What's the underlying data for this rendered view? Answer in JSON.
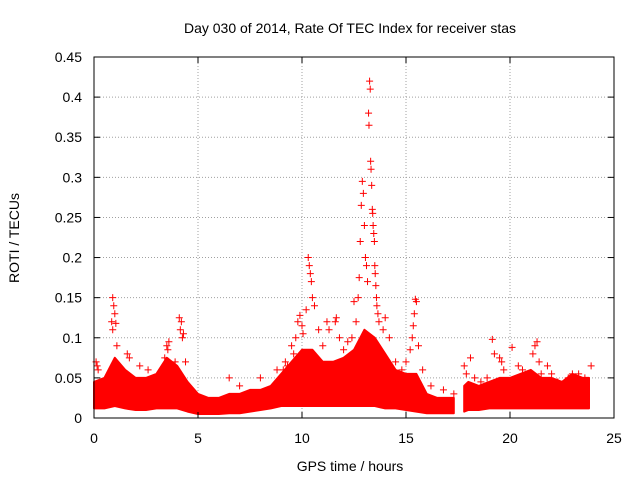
{
  "chart_data": {
    "type": "scatter",
    "title": "Day 030 of 2014, Rate Of TEC Index for receiver stas",
    "xlabel": "GPS time / hours",
    "ylabel": "ROTI / TECUs",
    "xlim": [
      0,
      25
    ],
    "ylim": [
      0,
      0.45
    ],
    "xticks": [
      0,
      5,
      10,
      15,
      20,
      25
    ],
    "xtick_labels": [
      "0",
      "5",
      "10",
      "15",
      "20",
      "25"
    ],
    "yticks": [
      0,
      0.05,
      0.1,
      0.15,
      0.2,
      0.25,
      0.3,
      0.35,
      0.4,
      0.45
    ],
    "ytick_labels": [
      "0",
      "0.05",
      "0.1",
      "0.15",
      "0.2",
      "0.25",
      "0.3",
      "0.35",
      "0.4",
      "0.45"
    ],
    "grid": true,
    "marker": "+",
    "series": [
      {
        "name": "ROTI",
        "color": "#ff0000",
        "points": [
          [
            0.1,
            0.07
          ],
          [
            0.15,
            0.065
          ],
          [
            0.2,
            0.06
          ],
          [
            0.9,
            0.15
          ],
          [
            0.95,
            0.14
          ],
          [
            1.0,
            0.13
          ],
          [
            0.85,
            0.12
          ],
          [
            1.05,
            0.118
          ],
          [
            0.9,
            0.11
          ],
          [
            1.1,
            0.09
          ],
          [
            1.6,
            0.08
          ],
          [
            1.7,
            0.075
          ],
          [
            2.2,
            0.065
          ],
          [
            2.6,
            0.06
          ],
          [
            3.4,
            0.075
          ],
          [
            3.5,
            0.09
          ],
          [
            3.6,
            0.095
          ],
          [
            3.55,
            0.085
          ],
          [
            4.1,
            0.125
          ],
          [
            4.2,
            0.12
          ],
          [
            4.15,
            0.11
          ],
          [
            4.3,
            0.105
          ],
          [
            4.25,
            0.1
          ],
          [
            3.9,
            0.07
          ],
          [
            4.4,
            0.07
          ],
          [
            6.5,
            0.05
          ],
          [
            7.0,
            0.04
          ],
          [
            8.0,
            0.05
          ],
          [
            9.0,
            0.04
          ],
          [
            8.8,
            0.06
          ],
          [
            9.1,
            0.06
          ],
          [
            9.2,
            0.07
          ],
          [
            9.3,
            0.065
          ],
          [
            9.5,
            0.09
          ],
          [
            9.6,
            0.08
          ],
          [
            9.7,
            0.1
          ],
          [
            9.8,
            0.12
          ],
          [
            9.9,
            0.128
          ],
          [
            10.0,
            0.115
          ],
          [
            10.05,
            0.105
          ],
          [
            10.2,
            0.135
          ],
          [
            10.3,
            0.2
          ],
          [
            10.35,
            0.19
          ],
          [
            10.4,
            0.18
          ],
          [
            10.45,
            0.17
          ],
          [
            10.5,
            0.15
          ],
          [
            10.6,
            0.14
          ],
          [
            10.8,
            0.11
          ],
          [
            11.0,
            0.09
          ],
          [
            11.2,
            0.12
          ],
          [
            11.3,
            0.11
          ],
          [
            11.6,
            0.12
          ],
          [
            11.65,
            0.125
          ],
          [
            11.8,
            0.1
          ],
          [
            12.0,
            0.085
          ],
          [
            12.2,
            0.095
          ],
          [
            12.4,
            0.1
          ],
          [
            12.5,
            0.145
          ],
          [
            12.6,
            0.12
          ],
          [
            12.7,
            0.15
          ],
          [
            12.75,
            0.175
          ],
          [
            12.8,
            0.22
          ],
          [
            12.85,
            0.265
          ],
          [
            12.9,
            0.295
          ],
          [
            12.95,
            0.28
          ],
          [
            13.0,
            0.24
          ],
          [
            13.05,
            0.2
          ],
          [
            13.1,
            0.19
          ],
          [
            13.15,
            0.17
          ],
          [
            13.2,
            0.38
          ],
          [
            13.22,
            0.365
          ],
          [
            13.25,
            0.42
          ],
          [
            13.28,
            0.41
          ],
          [
            13.3,
            0.32
          ],
          [
            13.32,
            0.31
          ],
          [
            13.35,
            0.29
          ],
          [
            13.38,
            0.26
          ],
          [
            13.4,
            0.255
          ],
          [
            13.42,
            0.24
          ],
          [
            13.45,
            0.23
          ],
          [
            13.48,
            0.22
          ],
          [
            13.5,
            0.19
          ],
          [
            13.52,
            0.18
          ],
          [
            13.55,
            0.165
          ],
          [
            13.58,
            0.15
          ],
          [
            13.6,
            0.14
          ],
          [
            13.65,
            0.13
          ],
          [
            13.7,
            0.12
          ],
          [
            13.9,
            0.11
          ],
          [
            14.0,
            0.125
          ],
          [
            14.2,
            0.1
          ],
          [
            14.5,
            0.07
          ],
          [
            14.8,
            0.06
          ],
          [
            15.0,
            0.07
          ],
          [
            15.2,
            0.085
          ],
          [
            15.3,
            0.1
          ],
          [
            15.35,
            0.115
          ],
          [
            15.4,
            0.13
          ],
          [
            15.45,
            0.148
          ],
          [
            15.5,
            0.145
          ],
          [
            15.6,
            0.09
          ],
          [
            15.8,
            0.06
          ],
          [
            16.2,
            0.04
          ],
          [
            16.8,
            0.035
          ],
          [
            17.3,
            0.03
          ],
          [
            17.8,
            0.065
          ],
          [
            17.9,
            0.055
          ],
          [
            18.1,
            0.075
          ],
          [
            18.3,
            0.05
          ],
          [
            18.6,
            0.045
          ],
          [
            18.9,
            0.05
          ],
          [
            19.15,
            0.098
          ],
          [
            19.25,
            0.08
          ],
          [
            19.5,
            0.075
          ],
          [
            19.6,
            0.07
          ],
          [
            19.7,
            0.06
          ],
          [
            20.1,
            0.088
          ],
          [
            20.4,
            0.065
          ],
          [
            20.6,
            0.06
          ],
          [
            21.1,
            0.08
          ],
          [
            21.2,
            0.09
          ],
          [
            21.3,
            0.095
          ],
          [
            21.4,
            0.07
          ],
          [
            21.5,
            0.055
          ],
          [
            21.8,
            0.065
          ],
          [
            22.0,
            0.055
          ],
          [
            22.3,
            0.045
          ],
          [
            22.8,
            0.05
          ],
          [
            23.0,
            0.055
          ],
          [
            23.3,
            0.055
          ],
          [
            23.6,
            0.05
          ],
          [
            23.9,
            0.065
          ]
        ]
      }
    ],
    "density_band": [
      [
        0.0,
        0.012,
        0.045
      ],
      [
        0.5,
        0.012,
        0.05
      ],
      [
        1.0,
        0.015,
        0.075
      ],
      [
        1.5,
        0.012,
        0.06
      ],
      [
        2.0,
        0.01,
        0.05
      ],
      [
        2.5,
        0.01,
        0.05
      ],
      [
        3.0,
        0.012,
        0.055
      ],
      [
        3.5,
        0.012,
        0.075
      ],
      [
        4.0,
        0.012,
        0.065
      ],
      [
        4.5,
        0.008,
        0.045
      ],
      [
        5.0,
        0.005,
        0.03
      ],
      [
        5.5,
        0.005,
        0.025
      ],
      [
        6.0,
        0.005,
        0.025
      ],
      [
        6.5,
        0.006,
        0.03
      ],
      [
        7.0,
        0.006,
        0.03
      ],
      [
        7.5,
        0.008,
        0.035
      ],
      [
        8.0,
        0.01,
        0.035
      ],
      [
        8.5,
        0.012,
        0.04
      ],
      [
        9.0,
        0.015,
        0.055
      ],
      [
        9.5,
        0.015,
        0.07
      ],
      [
        10.0,
        0.015,
        0.085
      ],
      [
        10.5,
        0.015,
        0.085
      ],
      [
        11.0,
        0.015,
        0.07
      ],
      [
        11.5,
        0.015,
        0.07
      ],
      [
        12.0,
        0.015,
        0.075
      ],
      [
        12.5,
        0.015,
        0.085
      ],
      [
        13.0,
        0.015,
        0.11
      ],
      [
        13.5,
        0.015,
        0.1
      ],
      [
        14.0,
        0.012,
        0.08
      ],
      [
        14.5,
        0.012,
        0.06
      ],
      [
        15.0,
        0.01,
        0.055
      ],
      [
        15.5,
        0.008,
        0.055
      ],
      [
        16.0,
        0.006,
        0.03
      ],
      [
        16.5,
        0.006,
        0.025
      ],
      [
        17.0,
        0.006,
        0.025
      ],
      [
        17.3,
        0.006,
        0.025
      ],
      [
        17.8,
        0.008,
        0.04
      ],
      [
        18.0,
        0.01,
        0.045
      ],
      [
        18.5,
        0.01,
        0.04
      ],
      [
        19.0,
        0.012,
        0.045
      ],
      [
        19.5,
        0.012,
        0.05
      ],
      [
        20.0,
        0.012,
        0.05
      ],
      [
        20.5,
        0.012,
        0.055
      ],
      [
        21.0,
        0.012,
        0.06
      ],
      [
        21.5,
        0.012,
        0.05
      ],
      [
        22.0,
        0.012,
        0.05
      ],
      [
        22.5,
        0.012,
        0.045
      ],
      [
        23.0,
        0.012,
        0.055
      ],
      [
        23.5,
        0.012,
        0.05
      ],
      [
        23.8,
        0.012,
        0.05
      ]
    ],
    "data_gap": [
      17.3,
      17.8
    ]
  }
}
